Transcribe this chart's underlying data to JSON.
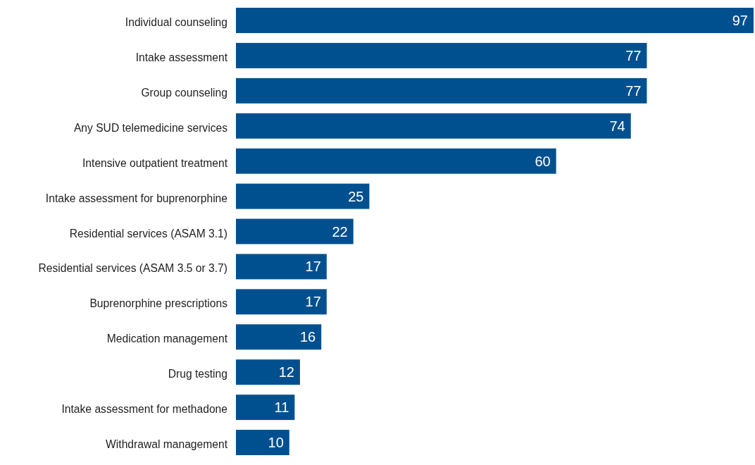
{
  "chart_data": {
    "type": "bar",
    "orientation": "horizontal",
    "data_labels": true,
    "color": "#00508f",
    "categories": [
      "Individual counseling",
      "Intake assessment",
      "Group counseling",
      "Any SUD telemedicine services",
      "Intensive outpatient treatment",
      "Intake assessment for buprenorphine",
      "Residential services (ASAM 3.1)",
      "Residential services (ASAM 3.5 or 3.7)",
      "Buprenorphine prescriptions",
      "Medication management",
      "Drug testing",
      "Intake assessment for methadone",
      "Withdrawal management"
    ],
    "values": [
      97,
      77,
      77,
      74,
      60,
      25,
      22,
      17,
      17,
      16,
      12,
      11,
      10
    ]
  }
}
